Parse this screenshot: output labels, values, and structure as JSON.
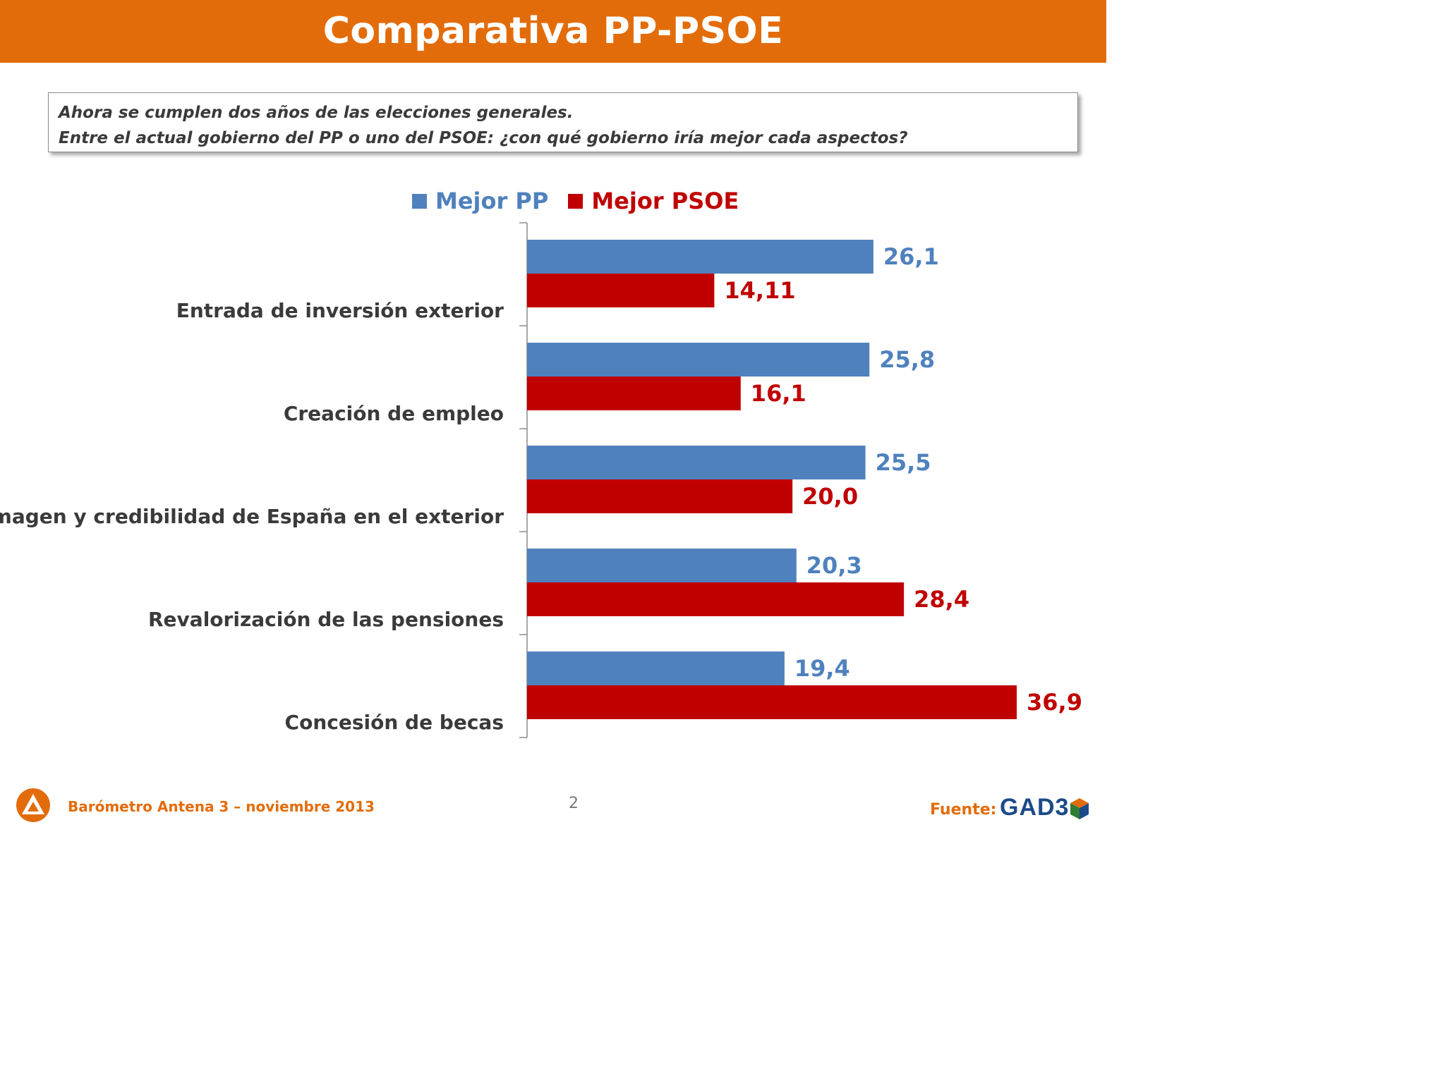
{
  "header": {
    "title": "Comparativa PP-PSOE"
  },
  "question": {
    "line1": "Ahora se cumplen dos años de las elecciones generales.",
    "line2": "Entre el actual gobierno del PP o uno del PSOE: ¿con qué gobierno iría mejor cada aspectos?"
  },
  "legend": {
    "pp": "Mejor PP",
    "psoe": "Mejor PSOE"
  },
  "colors": {
    "pp": "#4F81BD",
    "psoe": "#C00000",
    "accent": "#E36C0A"
  },
  "chart_data": {
    "type": "bar",
    "orientation": "horizontal",
    "categories": [
      "Entrada de inversión exterior",
      "Creación de empleo",
      "Imagen y credibilidad de España en el exterior",
      "Revalorización de las pensiones",
      "Concesión de becas"
    ],
    "series": [
      {
        "name": "Mejor PP",
        "values": [
          26.1,
          25.8,
          25.5,
          20.3,
          19.4
        ],
        "labels": [
          "26,1",
          "25,8",
          "25,5",
          "20,3",
          "19,4"
        ]
      },
      {
        "name": "Mejor PSOE",
        "values": [
          14.11,
          16.1,
          20.0,
          28.4,
          36.9
        ],
        "labels": [
          "14,11",
          "16,1",
          "20,0",
          "28,4",
          "36,9"
        ]
      }
    ],
    "xlim": [
      0,
      40
    ],
    "legend_position": "top",
    "grid": false
  },
  "footer": {
    "source_title": "Barómetro Antena 3 – noviembre 2013",
    "page": "2",
    "fuente_label": "Fuente:",
    "brand": "GAD3"
  }
}
